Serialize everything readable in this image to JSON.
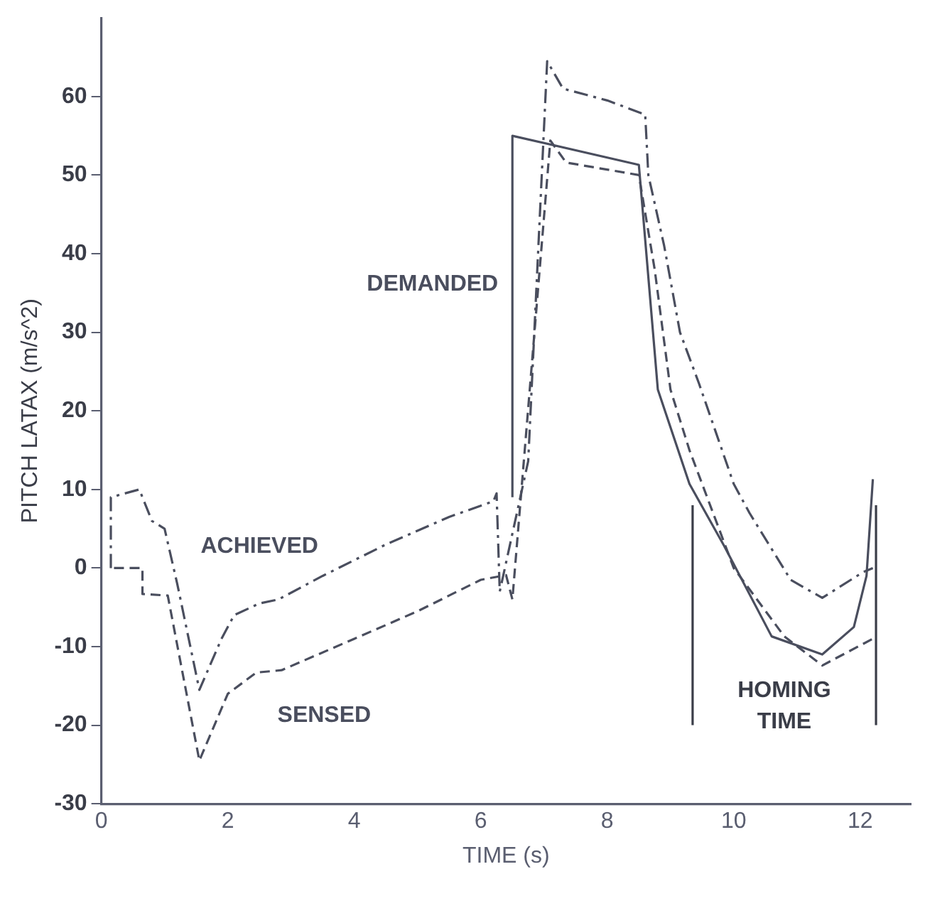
{
  "chart_data": {
    "type": "line",
    "xlabel": "TIME (s)",
    "ylabel": "PITCH LATAX (m/s^2)",
    "xlim": [
      0,
      12.8
    ],
    "xticks": [
      0,
      2,
      4,
      6,
      8,
      10,
      12
    ],
    "ylim": [
      -30,
      70
    ],
    "yticks": [
      -30,
      -20,
      -10,
      0,
      10,
      20,
      30,
      40,
      50,
      60
    ],
    "grid": false,
    "legend": false,
    "marker": "none",
    "series": [
      {
        "name": "DEMANDED",
        "color": "#4a4e5e",
        "line_style": "solid",
        "x": [
          6.5,
          6.5,
          8.5,
          8.8,
          9.3,
          9.85,
          10.6,
          11.4,
          11.9,
          12.1,
          12.2
        ],
        "values": [
          9,
          55,
          51.3,
          22.7,
          10.7,
          2.8,
          -8.7,
          -11,
          -7.5,
          -1,
          11.3
        ]
      },
      {
        "name": "ACHIEVED",
        "color": "#4a4e5e",
        "line_style": "dashdot",
        "x": [
          0.15,
          0.15,
          0.6,
          0.8,
          1.0,
          1.2,
          1.55,
          1.9,
          2.1,
          2.5,
          2.8,
          3.5,
          4.5,
          5.5,
          6.2,
          6.25,
          6.3,
          6.75,
          7.05,
          7.3,
          8.0,
          8.6,
          8.65,
          8.9,
          9.15,
          9.45,
          10.0,
          10.25,
          10.9,
          11.4,
          12.05,
          12.2
        ],
        "values": [
          0,
          9,
          10,
          6,
          5,
          -2,
          -15.5,
          -9,
          -6,
          -4.5,
          -4,
          -1,
          3,
          6.5,
          8.5,
          9.5,
          -3,
          13.6,
          64.5,
          61,
          59.5,
          57.7,
          50,
          41,
          30,
          23.5,
          10.7,
          7,
          -1.5,
          -3.8,
          -0.5,
          0
        ]
      },
      {
        "name": "SENSED",
        "color": "#4a4e5e",
        "line_style": "dashed",
        "x": [
          0.2,
          0.65,
          0.65,
          1.05,
          1.55,
          2.0,
          2.45,
          2.85,
          4.0,
          5.0,
          6.0,
          6.4,
          6.5,
          7.1,
          7.35,
          8.5,
          8.75,
          9.0,
          9.3,
          10.0,
          10.8,
          11.4,
          12.2
        ],
        "values": [
          0,
          0,
          -3.3,
          -3.5,
          -24.5,
          -16,
          -13.3,
          -13,
          -9,
          -5.5,
          -1.5,
          -0.9,
          -4,
          54.4,
          51.6,
          50,
          38,
          22.7,
          15,
          0,
          -8.7,
          -12.4,
          -9
        ]
      }
    ],
    "ref_lines": [
      {
        "axis": "x",
        "value": 9.35
      },
      {
        "axis": "x",
        "value": 12.25
      }
    ],
    "annotations": [
      "HOMING TIME"
    ]
  }
}
